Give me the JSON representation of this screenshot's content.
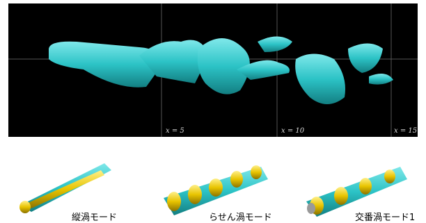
{
  "top_panel": {
    "axis_labels": [
      "x = 5",
      "x = 10",
      "x = 15"
    ]
  },
  "bottom_panels": [
    {
      "label": "縦渦モード"
    },
    {
      "label": "らせん渦モード"
    },
    {
      "label": "交番渦モード1"
    }
  ]
}
